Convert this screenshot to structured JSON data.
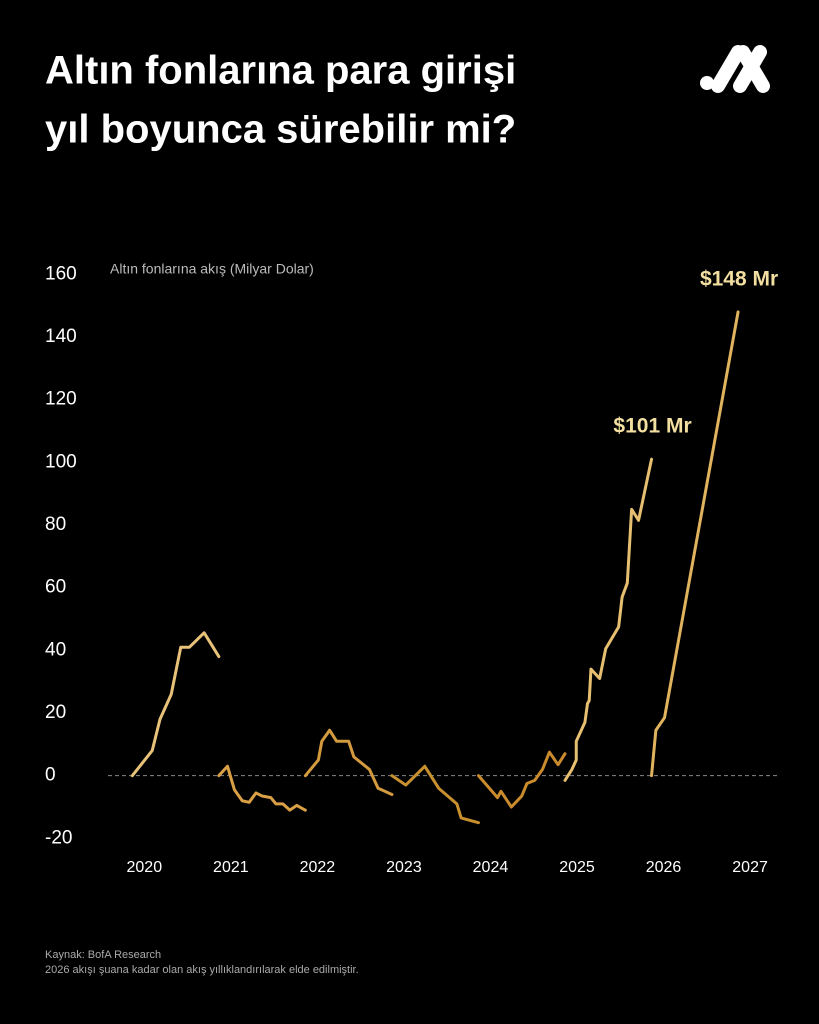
{
  "chart_data": {
    "type": "line",
    "title": [
      "Altın fonlarına para girişi",
      "yıl boyunca sürebilir mi?"
    ],
    "y_label": "Altın fonlarına akış (Milyar Dolar)",
    "source": "Kaynak: BofA Research",
    "note": "2026 akışı şuana kadar olan akış yıllıklandırılarak elde edilmiştir.",
    "xlim": [
      2019.8,
      2027.6
    ],
    "xticks": [
      2020,
      2021,
      2022,
      2023,
      2024,
      2025,
      2026,
      2027
    ],
    "ylim": [
      -25,
      170
    ],
    "yticks": [
      -20,
      0,
      20,
      40,
      60,
      80,
      100,
      120,
      140,
      160
    ],
    "reference_line": 0,
    "series": [
      {
        "color": "#e9c27a",
        "x": [
          2020,
          2020.23,
          2020.32,
          2020.45,
          2020.56,
          2020.66,
          2020.83,
          2021.0
        ],
        "values": [
          0,
          8,
          18,
          26,
          41,
          41,
          45.6,
          38
        ]
      },
      {
        "color": "#d9a046",
        "x": [
          2021,
          2021.1,
          2021.18,
          2021.27,
          2021.35,
          2021.43,
          2021.5,
          2021.6,
          2021.66,
          2021.74,
          2021.82,
          2021.9,
          2022.0
        ],
        "values": [
          0,
          3,
          -4.5,
          -8,
          -8.5,
          -5.5,
          -6.5,
          -7,
          -9,
          -9,
          -11,
          -9.5,
          -11
        ]
      },
      {
        "color": "#d49b3e",
        "x": [
          2022,
          2022.15,
          2022.19,
          2022.28,
          2022.36,
          2022.5,
          2022.56,
          2022.74,
          2022.84,
          2023.0
        ],
        "values": [
          0,
          5,
          11,
          14.5,
          11,
          11,
          6,
          2,
          -4,
          -6
        ]
      },
      {
        "color": "#c8902e",
        "x": [
          2023,
          2023.16,
          2023.38,
          2023.54,
          2023.75,
          2023.8,
          2024.0
        ],
        "values": [
          0,
          -3,
          3,
          -4,
          -9,
          -13.5,
          -15
        ]
      },
      {
        "color": "#c98b2c",
        "x": [
          2024,
          2024.22,
          2024.26,
          2024.38,
          2024.5,
          2024.56,
          2024.65,
          2024.74,
          2024.82,
          2024.92,
          2025.0
        ],
        "values": [
          0,
          -7,
          -5,
          -10,
          -6.5,
          -2.5,
          -1.5,
          2,
          7.5,
          3.5,
          7
        ]
      },
      {
        "color": "#e6c070",
        "x": [
          2025,
          2025.08,
          2025.13,
          2025.13,
          2025.23,
          2025.26,
          2025.28,
          2025.3,
          2025.4,
          2025.47,
          2025.62,
          2025.66,
          2025.72,
          2025.77,
          2025.85,
          2026.0
        ],
        "values": [
          -1.5,
          2,
          5,
          11,
          17,
          23,
          24,
          34,
          31,
          40.5,
          47.5,
          57,
          61.5,
          85,
          81.5,
          101
        ],
        "value_labels": [
          null,
          null,
          null,
          null,
          null,
          null,
          null,
          null,
          null,
          null,
          null,
          null,
          null,
          null,
          null,
          "$101 Mr"
        ]
      },
      {
        "color": "#e0b45e",
        "x": [
          2026,
          2026.05,
          2026.15,
          2027.0
        ],
        "values": [
          0,
          14.5,
          18.5,
          148
        ],
        "value_labels": [
          null,
          null,
          null,
          "$148 Mr"
        ]
      }
    ]
  }
}
